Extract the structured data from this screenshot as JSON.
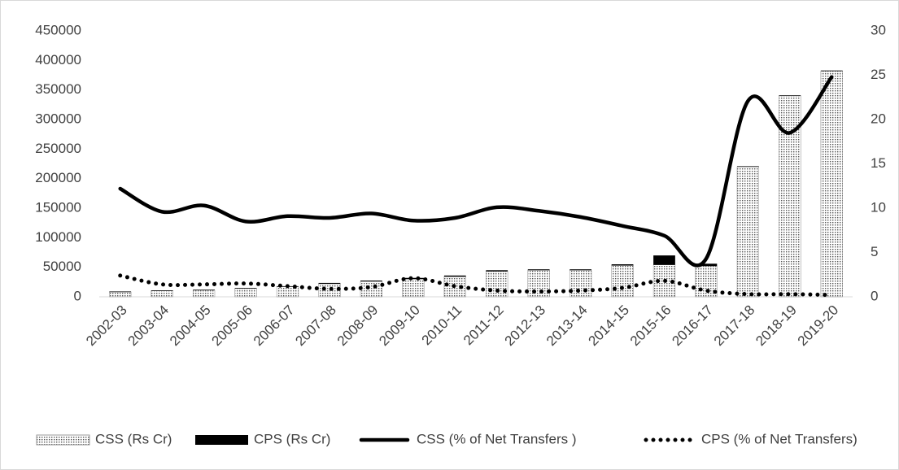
{
  "chart_data": {
    "type": "bar",
    "categories": [
      "2002-03",
      "2003-04",
      "2004-05",
      "2005-06",
      "2006-07",
      "2007-08",
      "2008-09",
      "2009-10",
      "2010-11",
      "2011-12",
      "2012-13",
      "2013-14",
      "2014-15",
      "2015-16",
      "2016-17",
      "2017-18",
      "2018-19",
      "2019-20"
    ],
    "series": [
      {
        "name": "CSS (Rs Cr)",
        "type": "bar",
        "color": "#555555",
        "values": [
          8000,
          10000,
          11000,
          14000,
          17000,
          22000,
          26000,
          30000,
          34000,
          43000,
          45000,
          45000,
          53000,
          54000,
          52000,
          220000,
          340000,
          382000
        ]
      },
      {
        "name": "CPS (Rs Cr)",
        "type": "bar",
        "color": "#000000",
        "values": [
          1000,
          1000,
          1000,
          1000,
          1000,
          1500,
          1500,
          2000,
          2000,
          2000,
          1500,
          1500,
          2000,
          16000,
          4000,
          1000,
          1000,
          1000
        ]
      },
      {
        "name": "CSS (% of Net Transfers )",
        "type": "line",
        "axis": "y2",
        "color": "#000000",
        "dash": "solid",
        "values": [
          12.2,
          9.6,
          10.3,
          8.5,
          9.1,
          8.9,
          9.4,
          8.6,
          8.9,
          10.1,
          9.7,
          9.0,
          8.0,
          6.9,
          4.3,
          22.1,
          18.5,
          24.8
        ]
      },
      {
        "name": "CPS (% of Net Transfers)",
        "type": "line",
        "axis": "y2",
        "color": "#000000",
        "dash": "dotted",
        "values": [
          2.4,
          1.4,
          1.4,
          1.5,
          1.2,
          0.9,
          1.1,
          2.1,
          1.2,
          0.7,
          0.6,
          0.7,
          1.0,
          1.8,
          0.7,
          0.3,
          0.3,
          0.2
        ]
      }
    ],
    "ylim": [
      0,
      450000
    ],
    "yticks": [
      0,
      50000,
      100000,
      150000,
      200000,
      250000,
      300000,
      350000,
      400000,
      450000
    ],
    "y2lim": [
      0,
      30
    ],
    "y2ticks": [
      0,
      5,
      10,
      15,
      20,
      25,
      30
    ],
    "grid": false,
    "legend": "bottom"
  }
}
